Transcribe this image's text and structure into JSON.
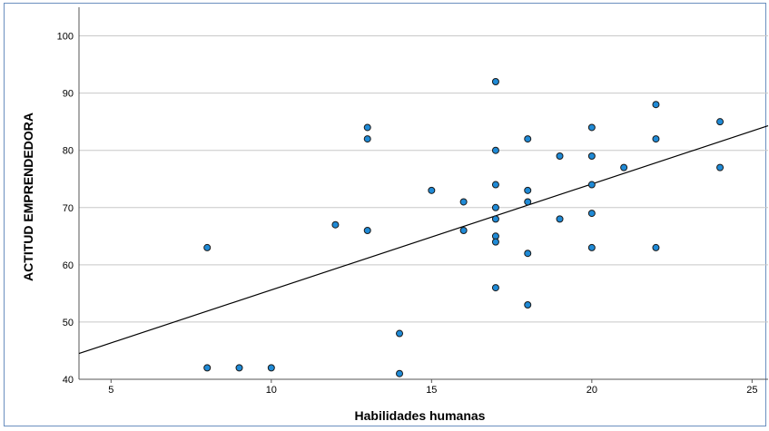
{
  "chart_data": {
    "type": "scatter",
    "title": "",
    "xlabel": "Habilidades humanas",
    "ylabel": "ACTITUD EMPRENDEDORA",
    "xlim": [
      4,
      25.5
    ],
    "ylim": [
      40,
      105
    ],
    "x_ticks": [
      "5",
      "10",
      "15",
      "20",
      "25"
    ],
    "y_ticks": [
      "40",
      "50",
      "60",
      "70",
      "80",
      "90",
      "100"
    ],
    "grid": "horizontal",
    "points": [
      {
        "x": 8,
        "y": 63
      },
      {
        "x": 8,
        "y": 42
      },
      {
        "x": 9,
        "y": 42
      },
      {
        "x": 10,
        "y": 42
      },
      {
        "x": 12,
        "y": 67
      },
      {
        "x": 13,
        "y": 84
      },
      {
        "x": 13,
        "y": 82
      },
      {
        "x": 13,
        "y": 66
      },
      {
        "x": 14,
        "y": 48
      },
      {
        "x": 14,
        "y": 41
      },
      {
        "x": 15,
        "y": 73
      },
      {
        "x": 16,
        "y": 71
      },
      {
        "x": 16,
        "y": 66
      },
      {
        "x": 17,
        "y": 92
      },
      {
        "x": 17,
        "y": 80
      },
      {
        "x": 17,
        "y": 74
      },
      {
        "x": 17,
        "y": 70
      },
      {
        "x": 17,
        "y": 68
      },
      {
        "x": 17,
        "y": 65
      },
      {
        "x": 17,
        "y": 64
      },
      {
        "x": 17,
        "y": 56
      },
      {
        "x": 18,
        "y": 82
      },
      {
        "x": 18,
        "y": 73
      },
      {
        "x": 18,
        "y": 71
      },
      {
        "x": 18,
        "y": 62
      },
      {
        "x": 18,
        "y": 53
      },
      {
        "x": 19,
        "y": 79
      },
      {
        "x": 19,
        "y": 68
      },
      {
        "x": 20,
        "y": 84
      },
      {
        "x": 20,
        "y": 79
      },
      {
        "x": 20,
        "y": 74
      },
      {
        "x": 20,
        "y": 69
      },
      {
        "x": 20,
        "y": 63
      },
      {
        "x": 21,
        "y": 77
      },
      {
        "x": 22,
        "y": 88
      },
      {
        "x": 22,
        "y": 82
      },
      {
        "x": 22,
        "y": 63
      },
      {
        "x": 24,
        "y": 85
      },
      {
        "x": 24,
        "y": 77
      }
    ],
    "fit_line": {
      "x": [
        4,
        25.5
      ],
      "y": [
        44.5,
        84.3
      ]
    },
    "colors": {
      "marker_fill": "#1f8ad6",
      "marker_stroke": "#1a1a1a",
      "fit_line": "#000000",
      "grid": "#c8c8c8",
      "frame": "#6b8fbf",
      "axis": "#555555"
    }
  }
}
